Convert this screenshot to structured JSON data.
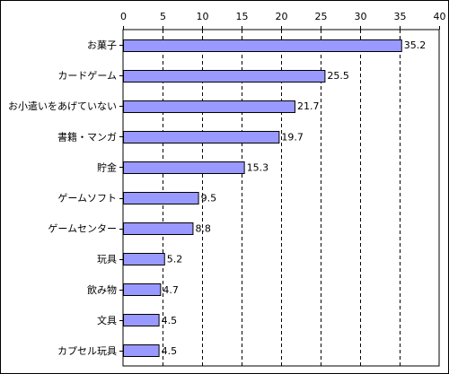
{
  "chart_data": {
    "type": "bar",
    "orientation": "horizontal",
    "categories": [
      "お菓子",
      "カードゲーム",
      "お小遣いをあげていない",
      "書籍・マンガ",
      "貯金",
      "ゲームソフト",
      "ゲームセンター",
      "玩具",
      "飲み物",
      "文具",
      "カプセル玩具"
    ],
    "values": [
      35.2,
      25.5,
      21.7,
      19.7,
      15.3,
      9.5,
      8.8,
      5.2,
      4.7,
      4.5,
      4.5
    ],
    "value_labels": [
      "35.2",
      "25.5",
      "21.7",
      "19.7",
      "15.3",
      "9.5",
      "8.8",
      "5.2",
      "4.7",
      "4.5",
      "4.5"
    ],
    "title": "",
    "xlabel": "",
    "ylabel": "",
    "xlim": [
      0,
      40
    ],
    "x_ticks": [
      0,
      5,
      10,
      15,
      20,
      25,
      30,
      35,
      40
    ],
    "x_axis_position": "top",
    "grid": "vertical dashed",
    "legend": "none",
    "bar_color": "#9999ff",
    "bar_edge_color": "#000000"
  }
}
